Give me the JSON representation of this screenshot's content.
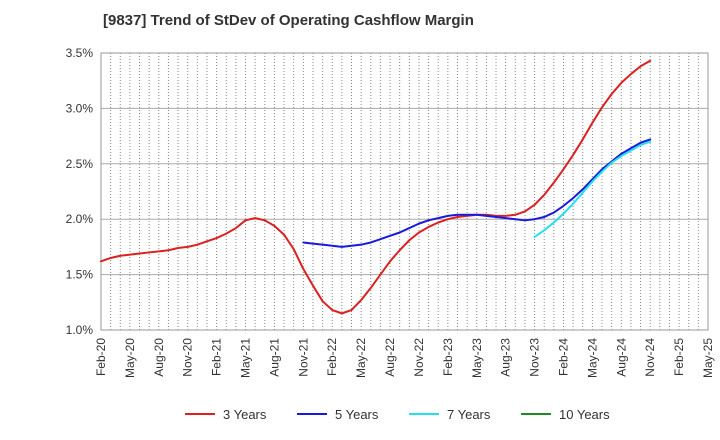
{
  "chart_data": {
    "type": "line",
    "title": "[9837]  Trend of StDev of Operating Cashflow Margin",
    "xlabel": "",
    "ylabel": "",
    "x_ticks": [
      "Feb-20",
      "May-20",
      "Aug-20",
      "Nov-20",
      "Feb-21",
      "May-21",
      "Aug-21",
      "Nov-21",
      "Feb-22",
      "May-22",
      "Aug-22",
      "Nov-22",
      "Feb-23",
      "May-23",
      "Aug-23",
      "Nov-23",
      "Feb-24",
      "May-24",
      "Aug-24",
      "Nov-24",
      "Feb-25",
      "May-25"
    ],
    "y_ticks": [
      "1.0%",
      "1.5%",
      "2.0%",
      "2.5%",
      "3.0%",
      "3.5%"
    ],
    "ylim": [
      1.0,
      3.5
    ],
    "grid": "vertical-dotted",
    "legend_position": "bottom",
    "series": [
      {
        "name": "3 Years",
        "color": "#dd2020",
        "points": [
          [
            "Feb-20",
            1.62
          ],
          [
            "Mar-20",
            1.65
          ],
          [
            "Apr-20",
            1.67
          ],
          [
            "May-20",
            1.68
          ],
          [
            "Jun-20",
            1.69
          ],
          [
            "Jul-20",
            1.7
          ],
          [
            "Aug-20",
            1.71
          ],
          [
            "Sep-20",
            1.72
          ],
          [
            "Oct-20",
            1.74
          ],
          [
            "Nov-20",
            1.75
          ],
          [
            "Dec-20",
            1.77
          ],
          [
            "Jan-21",
            1.8
          ],
          [
            "Feb-21",
            1.83
          ],
          [
            "Mar-21",
            1.87
          ],
          [
            "Apr-21",
            1.92
          ],
          [
            "May-21",
            1.99
          ],
          [
            "Jun-21",
            2.01
          ],
          [
            "Jul-21",
            1.99
          ],
          [
            "Aug-21",
            1.94
          ],
          [
            "Sep-21",
            1.86
          ],
          [
            "Oct-21",
            1.73
          ],
          [
            "Nov-21",
            1.55
          ],
          [
            "Dec-21",
            1.4
          ],
          [
            "Jan-22",
            1.26
          ],
          [
            "Feb-22",
            1.18
          ],
          [
            "Mar-22",
            1.15
          ],
          [
            "Apr-22",
            1.18
          ],
          [
            "May-22",
            1.27
          ],
          [
            "Jun-22",
            1.38
          ],
          [
            "Jul-22",
            1.5
          ],
          [
            "Aug-22",
            1.62
          ],
          [
            "Sep-22",
            1.72
          ],
          [
            "Oct-22",
            1.81
          ],
          [
            "Nov-22",
            1.88
          ],
          [
            "Dec-22",
            1.93
          ],
          [
            "Jan-23",
            1.97
          ],
          [
            "Feb-23",
            2.0
          ],
          [
            "Mar-23",
            2.02
          ],
          [
            "Apr-23",
            2.03
          ],
          [
            "May-23",
            2.04
          ],
          [
            "Jun-23",
            2.04
          ],
          [
            "Jul-23",
            2.03
          ],
          [
            "Aug-23",
            2.03
          ],
          [
            "Sep-23",
            2.04
          ],
          [
            "Oct-23",
            2.07
          ],
          [
            "Nov-23",
            2.13
          ],
          [
            "Dec-23",
            2.22
          ],
          [
            "Jan-24",
            2.33
          ],
          [
            "Feb-24",
            2.45
          ],
          [
            "Mar-24",
            2.58
          ],
          [
            "Apr-24",
            2.72
          ],
          [
            "May-24",
            2.87
          ],
          [
            "Jun-24",
            3.01
          ],
          [
            "Jul-24",
            3.13
          ],
          [
            "Aug-24",
            3.23
          ],
          [
            "Sep-24",
            3.31
          ],
          [
            "Oct-24",
            3.38
          ],
          [
            "Nov-24",
            3.43
          ]
        ]
      },
      {
        "name": "5 Years",
        "color": "#1a1adc",
        "points": [
          [
            "Nov-21",
            1.79
          ],
          [
            "Dec-21",
            1.78
          ],
          [
            "Jan-22",
            1.77
          ],
          [
            "Feb-22",
            1.76
          ],
          [
            "Mar-22",
            1.75
          ],
          [
            "Apr-22",
            1.76
          ],
          [
            "May-22",
            1.77
          ],
          [
            "Jun-22",
            1.79
          ],
          [
            "Jul-22",
            1.82
          ],
          [
            "Aug-22",
            1.85
          ],
          [
            "Sep-22",
            1.88
          ],
          [
            "Oct-22",
            1.92
          ],
          [
            "Nov-22",
            1.96
          ],
          [
            "Dec-22",
            1.99
          ],
          [
            "Jan-23",
            2.01
          ],
          [
            "Feb-23",
            2.03
          ],
          [
            "Mar-23",
            2.04
          ],
          [
            "Apr-23",
            2.04
          ],
          [
            "May-23",
            2.04
          ],
          [
            "Jun-23",
            2.03
          ],
          [
            "Jul-23",
            2.02
          ],
          [
            "Aug-23",
            2.01
          ],
          [
            "Sep-23",
            2.0
          ],
          [
            "Oct-23",
            1.99
          ],
          [
            "Nov-23",
            2.0
          ],
          [
            "Dec-23",
            2.02
          ],
          [
            "Jan-24",
            2.06
          ],
          [
            "Feb-24",
            2.12
          ],
          [
            "Mar-24",
            2.19
          ],
          [
            "Apr-24",
            2.27
          ],
          [
            "May-24",
            2.36
          ],
          [
            "Jun-24",
            2.45
          ],
          [
            "Jul-24",
            2.52
          ],
          [
            "Aug-24",
            2.59
          ],
          [
            "Sep-24",
            2.64
          ],
          [
            "Oct-24",
            2.69
          ],
          [
            "Nov-24",
            2.72
          ]
        ]
      },
      {
        "name": "7 Years",
        "color": "#22e0f0",
        "points": [
          [
            "Nov-23",
            1.84
          ],
          [
            "Dec-23",
            1.9
          ],
          [
            "Jan-24",
            1.97
          ],
          [
            "Feb-24",
            2.05
          ],
          [
            "Mar-24",
            2.14
          ],
          [
            "Apr-24",
            2.24
          ],
          [
            "May-24",
            2.34
          ],
          [
            "Jun-24",
            2.43
          ],
          [
            "Jul-24",
            2.51
          ],
          [
            "Aug-24",
            2.57
          ],
          [
            "Sep-24",
            2.62
          ],
          [
            "Oct-24",
            2.67
          ],
          [
            "Nov-24",
            2.7
          ]
        ]
      },
      {
        "name": "10 Years",
        "color": "#228822",
        "points": []
      }
    ]
  }
}
